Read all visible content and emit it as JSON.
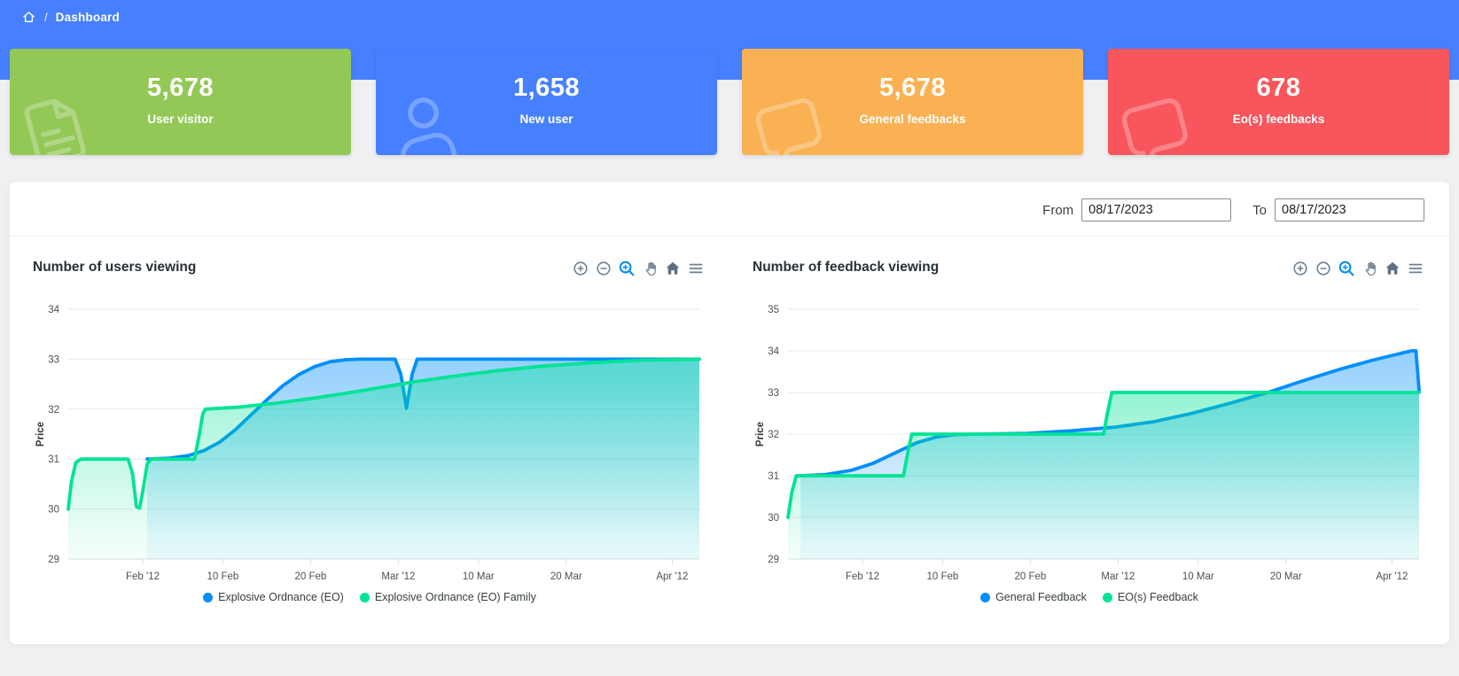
{
  "page": {
    "background": "#eef0f2"
  },
  "topbar": {
    "color": "#4680ff",
    "breadcrumb": {
      "separator": "/",
      "current": "Dashboard"
    }
  },
  "cards": [
    {
      "value": "5,678",
      "label": "User visitor",
      "color": "#93c857",
      "icon": "file-text-icon"
    },
    {
      "value": "1,658",
      "label": "New user",
      "color": "#4680ff",
      "icon": "user-icon"
    },
    {
      "value": "5,678",
      "label": "General feedbacks",
      "color": "#fab153",
      "icon": "chat-bubble-icon"
    },
    {
      "value": "678",
      "label": "Eo(s) feedbacks",
      "color": "#f8555c",
      "icon": "chat-bubble-icon"
    }
  ],
  "filters": {
    "from_label": "From",
    "from_value": "08/17/2023",
    "to_label": "To",
    "to_value": "08/17/2023"
  },
  "chart_data": [
    {
      "type": "area",
      "title": "Number of users viewing",
      "ylabel": "Price",
      "ylim": [
        29,
        34
      ],
      "yticks": [
        34,
        33,
        32,
        31,
        30,
        29
      ],
      "xticks": [
        {
          "label": "Feb '12",
          "pos": 0.118
        },
        {
          "label": "10 Feb",
          "pos": 0.245
        },
        {
          "label": "20 Feb",
          "pos": 0.384
        },
        {
          "label": "Mar '12",
          "pos": 0.523
        },
        {
          "label": "10 Mar",
          "pos": 0.65
        },
        {
          "label": "20 Mar",
          "pos": 0.789
        },
        {
          "label": "Apr '12",
          "pos": 0.957
        }
      ],
      "grid": true,
      "legend_position": "bottom",
      "toolbar": {
        "icons": [
          "zoom-in",
          "zoom-out",
          "selection-zoom",
          "pan",
          "home",
          "menu"
        ],
        "active": "selection-zoom"
      },
      "series": [
        {
          "name": "Explosive Ordnance (EO)",
          "color": "#008FFB",
          "points": [
            [
              0.125,
              31
            ],
            [
              0.16,
              31.02
            ],
            [
              0.19,
              31.07
            ],
            [
              0.215,
              31.17
            ],
            [
              0.24,
              31.34
            ],
            [
              0.265,
              31.59
            ],
            [
              0.29,
              31.89
            ],
            [
              0.315,
              32.19
            ],
            [
              0.34,
              32.47
            ],
            [
              0.365,
              32.69
            ],
            [
              0.39,
              32.85
            ],
            [
              0.415,
              32.95
            ],
            [
              0.44,
              32.99
            ],
            [
              0.462,
              33
            ],
            [
              0.518,
              33
            ],
            [
              0.527,
              32.7
            ],
            [
              0.536,
              32.02
            ],
            [
              0.545,
              32.7
            ],
            [
              0.553,
              33
            ],
            [
              0.7,
              33
            ],
            [
              0.85,
              33
            ],
            [
              1,
              33
            ]
          ]
        },
        {
          "name": "Explosive Ordnance (EO) Family",
          "color": "#00E396",
          "points": [
            [
              0,
              30
            ],
            [
              0.005,
              30.55
            ],
            [
              0.012,
              30.93
            ],
            [
              0.02,
              31
            ],
            [
              0.095,
              31
            ],
            [
              0.102,
              30.7
            ],
            [
              0.108,
              30.05
            ],
            [
              0.113,
              30.02
            ],
            [
              0.118,
              30.35
            ],
            [
              0.125,
              30.9
            ],
            [
              0.131,
              31
            ],
            [
              0.2,
              31
            ],
            [
              0.207,
              31.45
            ],
            [
              0.213,
              31.9
            ],
            [
              0.217,
              32
            ],
            [
              0.27,
              32.04
            ],
            [
              0.33,
              32.12
            ],
            [
              0.4,
              32.24
            ],
            [
              0.47,
              32.38
            ],
            [
              0.54,
              32.53
            ],
            [
              0.61,
              32.66
            ],
            [
              0.68,
              32.77
            ],
            [
              0.75,
              32.86
            ],
            [
              0.83,
              32.93
            ],
            [
              0.91,
              32.98
            ],
            [
              1,
              33
            ]
          ]
        }
      ]
    },
    {
      "type": "area",
      "title": "Number of feedback viewing",
      "ylabel": "Price",
      "ylim": [
        29,
        35
      ],
      "yticks": [
        35,
        34,
        33,
        32,
        31,
        30,
        29
      ],
      "xticks": [
        {
          "label": "Feb '12",
          "pos": 0.118
        },
        {
          "label": "10 Feb",
          "pos": 0.245
        },
        {
          "label": "20 Feb",
          "pos": 0.384
        },
        {
          "label": "Mar '12",
          "pos": 0.523
        },
        {
          "label": "10 Mar",
          "pos": 0.65
        },
        {
          "label": "20 Mar",
          "pos": 0.789
        },
        {
          "label": "Apr '12",
          "pos": 0.957
        }
      ],
      "grid": true,
      "legend_position": "bottom",
      "toolbar": {
        "icons": [
          "zoom-in",
          "zoom-out",
          "selection-zoom",
          "pan",
          "home",
          "menu"
        ],
        "active": "selection-zoom"
      },
      "series": [
        {
          "name": "General Feedback",
          "color": "#008FFB",
          "points": [
            [
              0.02,
              31
            ],
            [
              0.06,
              31.03
            ],
            [
              0.1,
              31.13
            ],
            [
              0.135,
              31.3
            ],
            [
              0.17,
              31.55
            ],
            [
              0.205,
              31.8
            ],
            [
              0.235,
              31.93
            ],
            [
              0.265,
              31.99
            ],
            [
              0.3,
              32
            ],
            [
              0.38,
              32.02
            ],
            [
              0.45,
              32.08
            ],
            [
              0.52,
              32.17
            ],
            [
              0.58,
              32.3
            ],
            [
              0.64,
              32.5
            ],
            [
              0.7,
              32.74
            ],
            [
              0.76,
              33
            ],
            [
              0.82,
              33.3
            ],
            [
              0.875,
              33.56
            ],
            [
              0.925,
              33.77
            ],
            [
              0.963,
              33.91
            ],
            [
              0.988,
              34
            ],
            [
              0.995,
              34
            ],
            [
              1,
              33.05
            ]
          ]
        },
        {
          "name": "EO(s) Feedback",
          "color": "#00E396",
          "points": [
            [
              0,
              30
            ],
            [
              0.006,
              30.6
            ],
            [
              0.013,
              31
            ],
            [
              0.183,
              31
            ],
            [
              0.189,
              31.5
            ],
            [
              0.196,
              32
            ],
            [
              0.5,
              32
            ],
            [
              0.506,
              32.5
            ],
            [
              0.513,
              33
            ],
            [
              0.75,
              33
            ],
            [
              1,
              33
            ]
          ]
        }
      ]
    }
  ]
}
